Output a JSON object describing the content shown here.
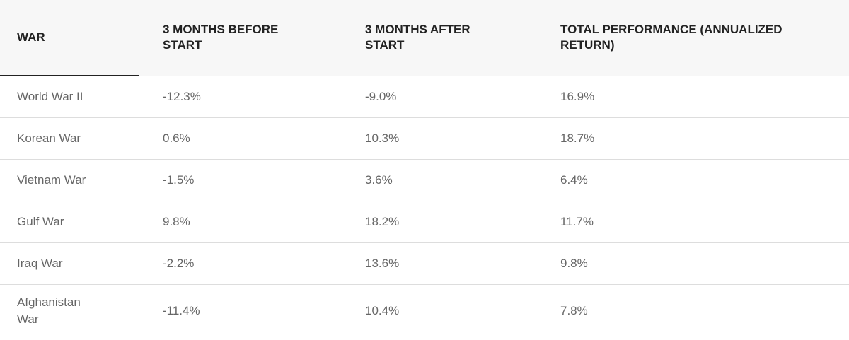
{
  "table": {
    "headers": [
      "WAR",
      "3 MONTHS BEFORE START",
      "3 MONTHS AFTER START",
      "TOTAL PERFORMANCE (ANNUALIZED RETURN)"
    ],
    "rows": [
      [
        "World War II",
        "-12.3%",
        "-9.0%",
        "16.9%"
      ],
      [
        "Korean War",
        "0.6%",
        "10.3%",
        "18.7%"
      ],
      [
        "Vietnam War",
        "-1.5%",
        "3.6%",
        "6.4%"
      ],
      [
        "Gulf War",
        "9.8%",
        "18.2%",
        "11.7%"
      ],
      [
        "Iraq War",
        "-2.2%",
        "13.6%",
        "9.8%"
      ],
      [
        "Afghanistan War",
        "-11.4%",
        "10.4%",
        "7.8%"
      ]
    ]
  }
}
